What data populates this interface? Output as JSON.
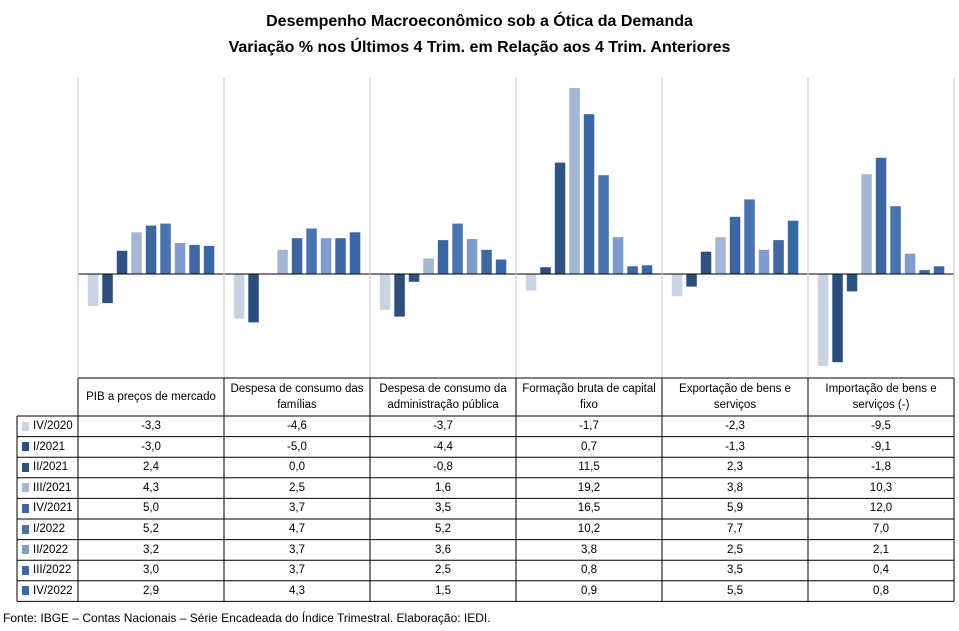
{
  "title": "Desempenho Macroeconômico  sob a Ótica da Demanda",
  "subtitle": "Variação % nos Últimos 4 Trim. em Relação aos  4 Trim. Anteriores",
  "source": "Fonte: IBGE – Contas Nacionais – Série Encadeada do Índice Trimestral. Elaboração: IEDI.",
  "chart_data": {
    "type": "bar",
    "title": "Desempenho Macroeconômico  sob a Ótica da Demanda",
    "subtitle": "Variação % nos Últimos 4 Trim. em Relação aos  4 Trim. Anteriores",
    "categories": [
      "PIB a preços de mercado",
      "Despesa de consumo das famílias",
      "Despesa de consumo da administração pública",
      "Formação bruta de capital fixo",
      "Exportação de bens e serviços",
      "Importação de bens e serviços (-)"
    ],
    "series": [
      {
        "name": "IV/2020",
        "color": "#c9d3e3",
        "values": [
          -3.3,
          -4.6,
          -3.7,
          -1.7,
          -2.3,
          -9.5
        ],
        "labels": [
          "-3,3",
          "-4,6",
          "-3,7",
          "-1,7",
          "-2,3",
          "-9,5"
        ]
      },
      {
        "name": "I/2021",
        "color": "#2d4d7a",
        "values": [
          -3.0,
          -5.0,
          -4.4,
          0.7,
          -1.3,
          -9.1
        ],
        "labels": [
          "-3,0",
          "-5,0",
          "-4,4",
          "0,7",
          "-1,3",
          "-9,1"
        ]
      },
      {
        "name": "II/2021",
        "color": "#2e5282",
        "values": [
          2.4,
          0.0,
          -0.8,
          11.5,
          2.3,
          -1.8
        ],
        "labels": [
          "2,4",
          "0,0",
          "-0,8",
          "11,5",
          "2,3",
          "-1,8"
        ]
      },
      {
        "name": "III/2021",
        "color": "#a3b6d4",
        "values": [
          4.3,
          2.5,
          1.6,
          19.2,
          3.8,
          10.3
        ],
        "labels": [
          "4,3",
          "2,5",
          "1,6",
          "19,2",
          "3,8",
          "10,3"
        ]
      },
      {
        "name": "IV/2021",
        "color": "#3c66a2",
        "values": [
          5.0,
          3.7,
          3.5,
          16.5,
          5.9,
          12.0
        ],
        "labels": [
          "5,0",
          "3,7",
          "3,5",
          "16,5",
          "5,9",
          "12,0"
        ]
      },
      {
        "name": "I/2022",
        "color": "#4a73b0",
        "values": [
          5.2,
          4.7,
          5.2,
          10.2,
          7.7,
          7.0
        ],
        "labels": [
          "5,2",
          "4,7",
          "5,2",
          "10,2",
          "7,7",
          "7,0"
        ]
      },
      {
        "name": "II/2022",
        "color": "#7f9ccc",
        "values": [
          3.2,
          3.7,
          3.6,
          3.8,
          2.5,
          2.1
        ],
        "labels": [
          "3,2",
          "3,7",
          "3,6",
          "3,8",
          "2,5",
          "2,1"
        ]
      },
      {
        "name": "III/2022",
        "color": "#3f67a3",
        "values": [
          3.0,
          3.7,
          2.5,
          0.8,
          3.5,
          0.4
        ],
        "labels": [
          "3,0",
          "3,7",
          "2,5",
          "0,8",
          "3,5",
          "0,4"
        ]
      },
      {
        "name": "IV/2022",
        "color": "#3a67a6",
        "values": [
          2.9,
          4.3,
          1.5,
          0.9,
          5.5,
          0.8
        ],
        "labels": [
          "2,9",
          "4,3",
          "1,5",
          "0,9",
          "5,5",
          "0,8"
        ]
      }
    ],
    "ylim": [
      -10.5,
      19.2
    ],
    "grid": false,
    "legend": "data-table"
  }
}
